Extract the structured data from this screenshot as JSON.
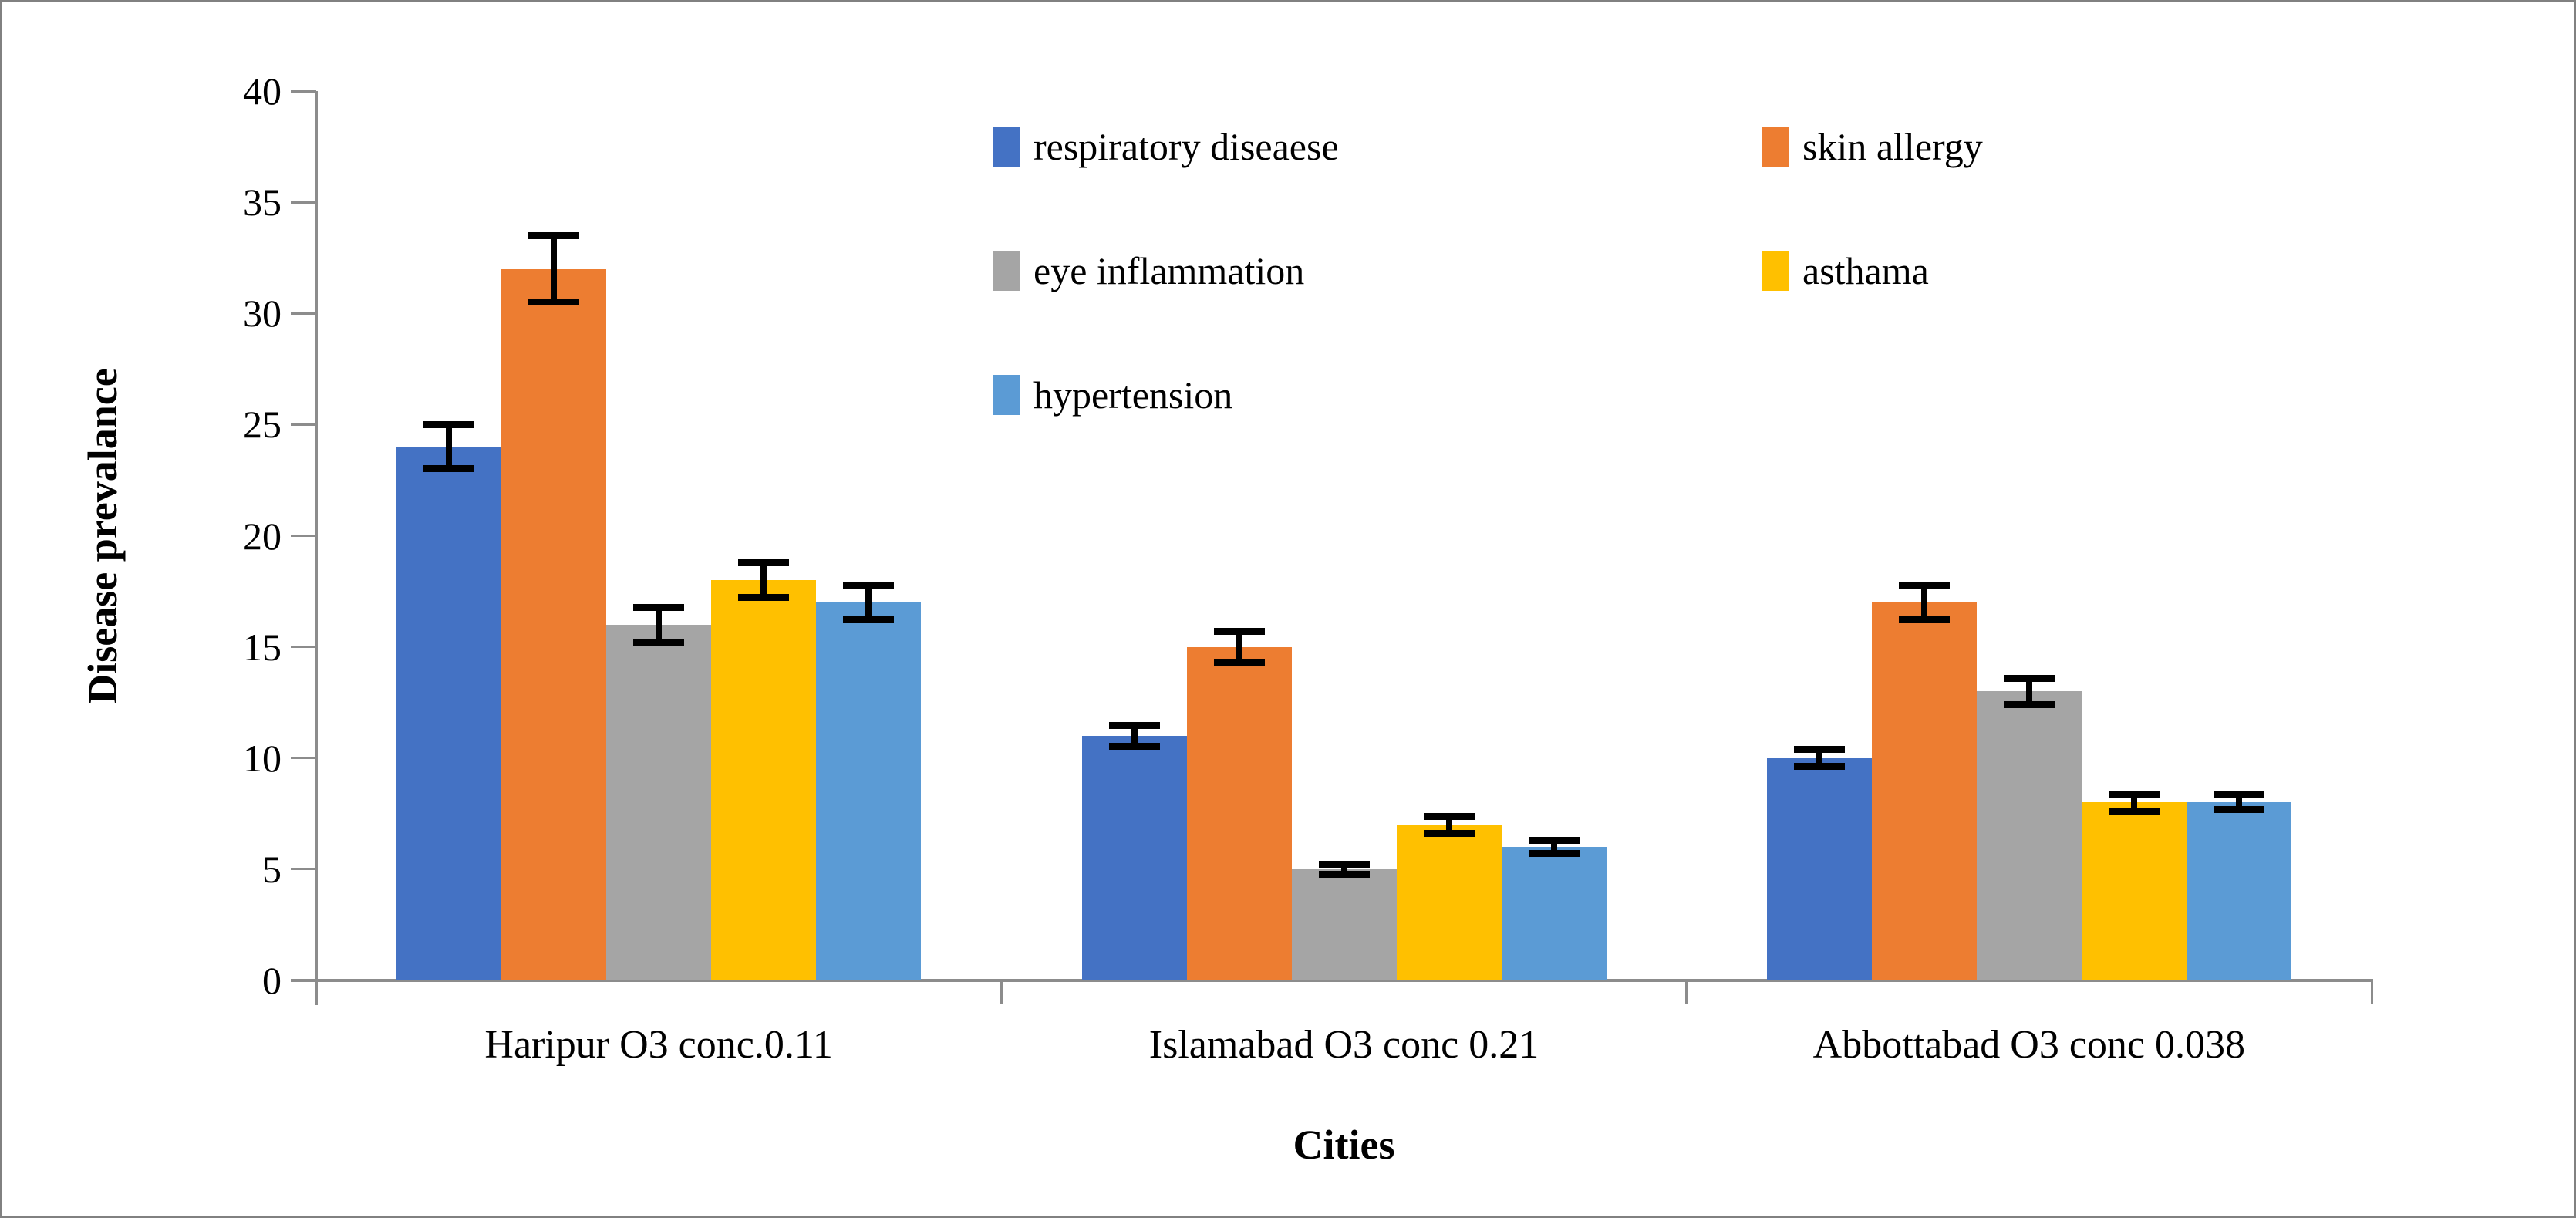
{
  "chart_data": {
    "type": "bar",
    "title": "",
    "xlabel": "Cities",
    "ylabel": "Disease prevalance",
    "ylim": [
      0,
      40
    ],
    "yticks": [
      0,
      5,
      10,
      15,
      20,
      25,
      30,
      35,
      40
    ],
    "grid": "off",
    "legend_position": "top-center-two-columns",
    "error_bars": true,
    "categories": [
      "Haripur O3 conc.0.11",
      "Islamabad O3 conc 0.21",
      "Abbottabad O3 conc 0.038"
    ],
    "series": [
      {
        "name": "respiratory diseaese",
        "color": "#4472C4",
        "values": [
          24,
          11,
          10
        ],
        "errors": [
          1.0,
          0.5,
          0.4
        ]
      },
      {
        "name": "skin allergy",
        "color": "#ED7D31",
        "values": [
          32,
          15,
          17
        ],
        "errors": [
          1.5,
          0.7,
          0.8
        ]
      },
      {
        "name": "eye inflammation",
        "color": "#A5A5A5",
        "values": [
          16,
          5,
          13
        ],
        "errors": [
          0.8,
          0.25,
          0.6
        ]
      },
      {
        "name": "asthama",
        "color": "#FFC000",
        "values": [
          18,
          7,
          8
        ],
        "errors": [
          0.8,
          0.4,
          0.4
        ]
      },
      {
        "name": "hypertension",
        "color": "#5B9BD5",
        "values": [
          17,
          6,
          8
        ],
        "errors": [
          0.8,
          0.3,
          0.35
        ]
      }
    ],
    "colors": {
      "axis": "#8C8C8C",
      "error_bar": "#000000",
      "frame_border": "#818181",
      "background": "#FFFFFF"
    }
  }
}
